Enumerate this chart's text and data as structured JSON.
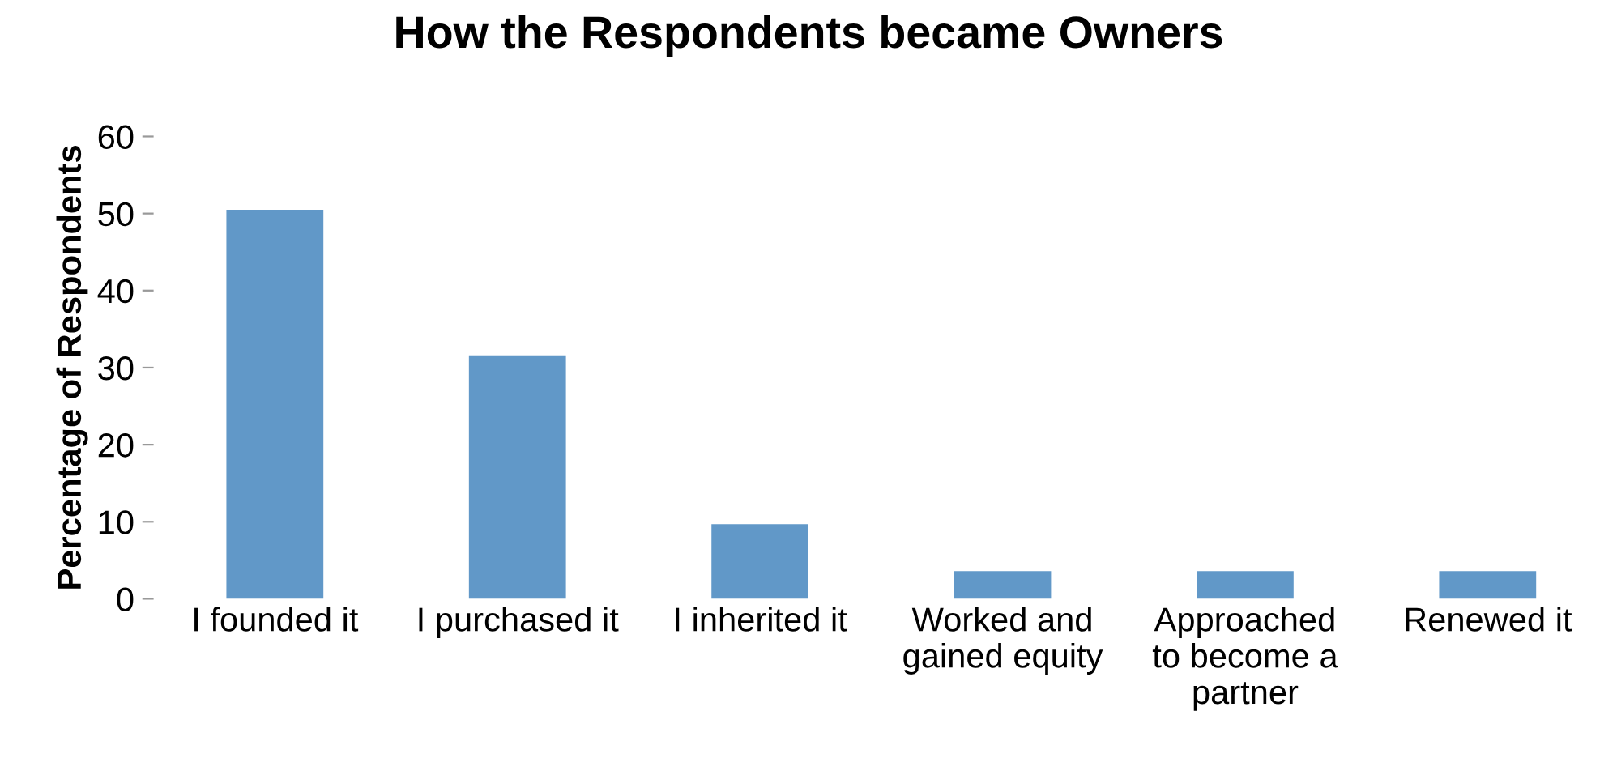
{
  "chart_data": {
    "type": "bar",
    "title": "How the Respondents became Owners",
    "ylabel": "Percentage of Respondents",
    "categories": [
      "I founded it",
      "I purchased it",
      "I inherited it",
      "Worked and\ngained equity",
      "Approached\nto become a\npartner",
      "Renewed it"
    ],
    "values": [
      50.5,
      31.6,
      9.7,
      3.6,
      3.6,
      3.6
    ],
    "color": "#6198c8",
    "ylim": [
      0,
      60
    ],
    "yticks": [
      0,
      10,
      20,
      30,
      40,
      50,
      60
    ],
    "grid": false,
    "legend": false
  }
}
